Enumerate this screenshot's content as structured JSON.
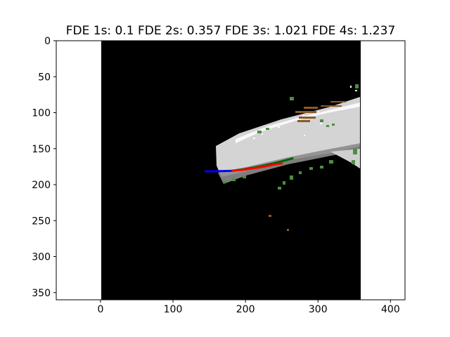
{
  "chart_data": {
    "type": "image",
    "title": "FDE 1s: 0.1 FDE 2s: 0.357 FDE 3s: 1.021 FDE 4s: 1.237",
    "xlabel": "",
    "ylabel": "",
    "xlim": [
      -61,
      420
    ],
    "ylim": [
      360,
      0
    ],
    "y_inverted": true,
    "grid": false,
    "xticks": [
      0,
      100,
      200,
      300,
      400
    ],
    "yticks": [
      0,
      50,
      100,
      150,
      200,
      250,
      300,
      350
    ],
    "image_extent": {
      "x": [
        0,
        360
      ],
      "y": [
        0,
        360
      ]
    },
    "image_background": "#000000",
    "series": [
      {
        "color": "#0000ff",
        "x": [
          145,
          155,
          165,
          175,
          182
        ],
        "y": [
          181.5,
          181.5,
          181.3,
          181.0,
          180.8
        ]
      },
      {
        "color": "#006400",
        "x": [
          182,
          195,
          210,
          225,
          240,
          252,
          265
        ],
        "y": [
          180.5,
          179.0,
          176.5,
          173.5,
          170.0,
          167.0,
          163.5
        ]
      },
      {
        "color": "#ff0000",
        "x": [
          182,
          195,
          210,
          225,
          240,
          250
        ],
        "y": [
          180.8,
          179.5,
          177.5,
          175.0,
          172.0,
          170.5
        ]
      }
    ],
    "colors": {
      "road": "#d4d4d4",
      "road_shadow": "#8c8c8c",
      "vegetation": "#4e8e3e",
      "structure": "#8b5a2b",
      "points": "#ffffff"
    }
  }
}
